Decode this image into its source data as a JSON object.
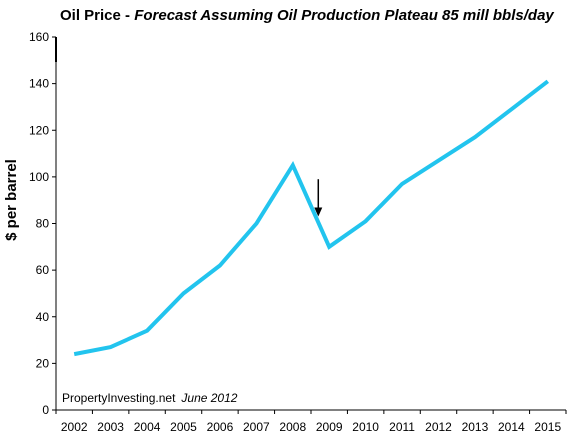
{
  "chart_data": {
    "type": "line",
    "title": "Oil Price - ",
    "subtitle": "Forecast  Assuming Oil Production Plateau 85 mill bbls/day",
    "ylabel": "$ per barrel",
    "xlabel": "",
    "ylim": [
      0,
      160
    ],
    "y_ticks": [
      0,
      20,
      40,
      60,
      80,
      100,
      120,
      140,
      160
    ],
    "y_tick_labels": [
      "0",
      "20",
      "40",
      "60",
      "80",
      "100",
      "120",
      "140",
      "160"
    ],
    "x_tick_labels": [
      "2002",
      "2003",
      "2004",
      "2005",
      "2006",
      "2007",
      "2008",
      "2009",
      "2010",
      "2011",
      "2012",
      "2013",
      "2014",
      "2015"
    ],
    "grid": false,
    "legend": "none",
    "series": [
      {
        "color": "#22C4EE",
        "x": [
          2002,
          2003,
          2004,
          2005,
          2006,
          2007,
          2008,
          2009,
          2010,
          2011,
          2012,
          2013,
          2014,
          2015
        ],
        "values": [
          24,
          27,
          34,
          50,
          62,
          80,
          105,
          70,
          81,
          97,
          107,
          117,
          129,
          141
        ]
      }
    ],
    "annotations": {
      "arrow": {
        "x": 2008.7,
        "y_from": 99,
        "y_to": 83,
        "color": "#000000"
      },
      "source": "PropertyInvesting.net",
      "date": "June 2012"
    }
  }
}
